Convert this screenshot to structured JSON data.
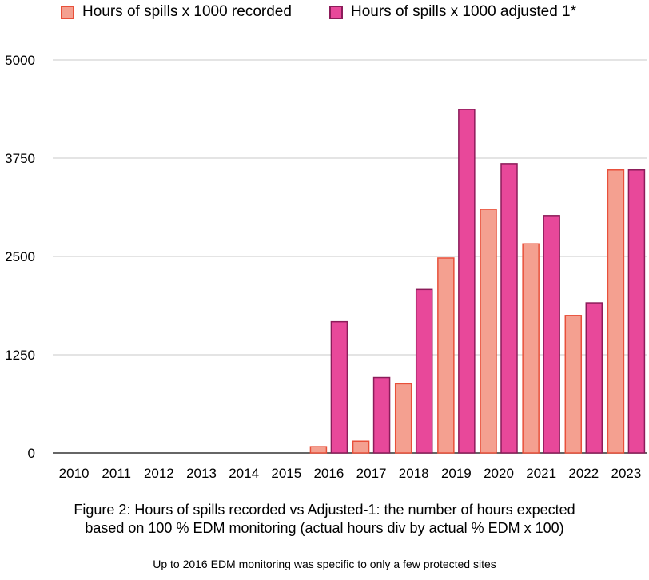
{
  "chart_data": {
    "type": "bar",
    "categories": [
      "2010",
      "2011",
      "2012",
      "2013",
      "2014",
      "2015",
      "2016",
      "2017",
      "2018",
      "2019",
      "2020",
      "2021",
      "2022",
      "2023"
    ],
    "series": [
      {
        "name": "Hours of spills x 1000 recorded",
        "values": [
          0,
          0,
          0,
          0,
          0,
          0,
          80,
          150,
          880,
          2480,
          3100,
          2660,
          1750,
          3600
        ],
        "color": "#f4a090",
        "stroke": "#e8503a"
      },
      {
        "name": "Hours of spills x 1000 adjusted 1*",
        "values": [
          0,
          0,
          0,
          0,
          0,
          0,
          1670,
          960,
          2080,
          4370,
          3680,
          3020,
          1910,
          3600
        ],
        "color": "#e8489a",
        "stroke": "#8c1c5a"
      }
    ],
    "yticks": [
      "0",
      "1250",
      "2500",
      "3750",
      "5000"
    ],
    "ylim": [
      0,
      5000
    ],
    "grid": true,
    "legend_position": "top-left",
    "title": "",
    "xlabel": "",
    "ylabel": ""
  },
  "caption": {
    "line1": "Figure 2: Hours of spills recorded vs Adjusted-1: the number of hours expected",
    "line2": "based on 100 % EDM monitoring (actual hours div by actual % EDM x 100)"
  },
  "note": "Up to 2016 EDM monitoring was specific to only a few protected sites"
}
